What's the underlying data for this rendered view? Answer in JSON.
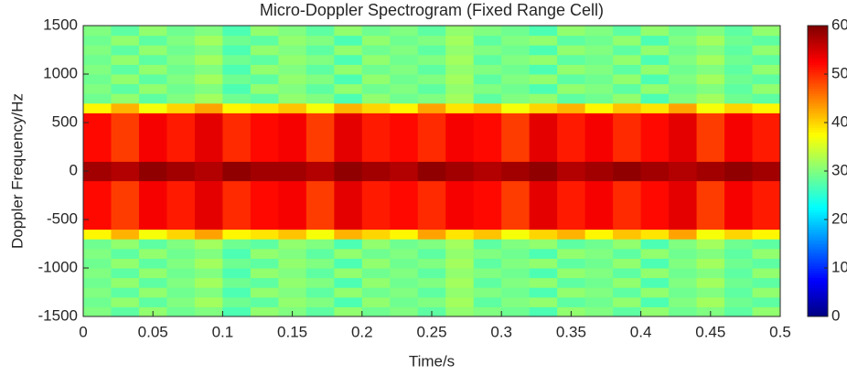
{
  "chart_data": {
    "type": "heatmap",
    "title": "Micro-Doppler Spectrogram (Fixed Range Cell)",
    "xlabel": "Time/s",
    "ylabel": "Doppler Frequency/Hz",
    "colorscale": "jet",
    "xlim": [
      0,
      0.5
    ],
    "ylim": [
      -1500,
      1500
    ],
    "xticks": [
      0,
      0.05,
      0.1,
      0.15,
      0.2,
      0.25,
      0.3,
      0.35,
      0.4,
      0.45,
      0.5
    ],
    "yticks": [
      -1500,
      -1000,
      -500,
      0,
      500,
      1000,
      1500
    ],
    "zlim": [
      0,
      60
    ],
    "cticks": [
      0,
      10,
      20,
      30,
      40,
      50,
      60
    ],
    "x": [
      0.01,
      0.03,
      0.05,
      0.07,
      0.09,
      0.11,
      0.13,
      0.15,
      0.17,
      0.19,
      0.21,
      0.23,
      0.25,
      0.27,
      0.29,
      0.31,
      0.33,
      0.35,
      0.37,
      0.39,
      0.41,
      0.43,
      0.45,
      0.47,
      0.49
    ],
    "y": [
      -1450,
      -1350,
      -1250,
      -1150,
      -1050,
      -950,
      -850,
      -750,
      -650,
      -550,
      -450,
      -350,
      -250,
      -150,
      -50,
      50,
      150,
      250,
      350,
      450,
      550,
      650,
      750,
      850,
      950,
      1050,
      1150,
      1250,
      1350,
      1450
    ],
    "z": [
      [
        30,
        28,
        31,
        29,
        30,
        27,
        31,
        30,
        28,
        31,
        29,
        30,
        28,
        31,
        30,
        29,
        27,
        31,
        30,
        28,
        31,
        29,
        30,
        28,
        31
      ],
      [
        29,
        31,
        28,
        30,
        32,
        29,
        28,
        31,
        30,
        27,
        31,
        29,
        30,
        32,
        28,
        30,
        31,
        28,
        29,
        31,
        27,
        30,
        32,
        29,
        28
      ],
      [
        30,
        28,
        31,
        29,
        30,
        27,
        31,
        30,
        28,
        31,
        29,
        30,
        28,
        31,
        30,
        29,
        27,
        31,
        30,
        28,
        31,
        29,
        30,
        28,
        31
      ],
      [
        29,
        31,
        28,
        30,
        32,
        29,
        28,
        31,
        30,
        27,
        31,
        29,
        30,
        32,
        28,
        30,
        31,
        28,
        29,
        31,
        27,
        30,
        32,
        29,
        28
      ],
      [
        30,
        28,
        31,
        29,
        30,
        27,
        31,
        30,
        28,
        31,
        29,
        30,
        28,
        31,
        30,
        29,
        27,
        31,
        30,
        28,
        31,
        29,
        30,
        28,
        31
      ],
      [
        29,
        31,
        28,
        30,
        32,
        29,
        28,
        31,
        30,
        27,
        31,
        29,
        30,
        32,
        28,
        30,
        31,
        28,
        29,
        31,
        27,
        30,
        32,
        29,
        28
      ],
      [
        30,
        28,
        31,
        29,
        30,
        27,
        31,
        30,
        28,
        31,
        29,
        30,
        28,
        31,
        30,
        29,
        27,
        31,
        30,
        28,
        31,
        29,
        30,
        28,
        31
      ],
      [
        29,
        31,
        28,
        30,
        32,
        29,
        28,
        31,
        30,
        27,
        31,
        29,
        30,
        32,
        28,
        30,
        31,
        28,
        29,
        31,
        27,
        30,
        32,
        29,
        28
      ],
      [
        38,
        42,
        37,
        40,
        43,
        38,
        39,
        41,
        37,
        42,
        40,
        38,
        43,
        39,
        41,
        37,
        40,
        42,
        38,
        41,
        39,
        43,
        37,
        40,
        38
      ],
      [
        52,
        49,
        53,
        51,
        54,
        50,
        52,
        53,
        49,
        54,
        51,
        52,
        50,
        53,
        52,
        49,
        54,
        51,
        53,
        50,
        52,
        54,
        49,
        53,
        51
      ],
      [
        52,
        49,
        53,
        51,
        54,
        50,
        52,
        53,
        49,
        54,
        51,
        52,
        50,
        53,
        52,
        49,
        54,
        51,
        53,
        50,
        52,
        54,
        49,
        53,
        51
      ],
      [
        52,
        49,
        53,
        51,
        54,
        50,
        52,
        53,
        49,
        54,
        51,
        52,
        50,
        53,
        52,
        49,
        54,
        51,
        53,
        50,
        52,
        54,
        49,
        53,
        51
      ],
      [
        52,
        49,
        53,
        51,
        54,
        50,
        52,
        53,
        49,
        54,
        51,
        52,
        50,
        53,
        52,
        49,
        54,
        51,
        53,
        50,
        52,
        54,
        49,
        53,
        51
      ],
      [
        52,
        49,
        53,
        51,
        54,
        50,
        52,
        53,
        49,
        54,
        51,
        52,
        50,
        53,
        52,
        49,
        54,
        51,
        53,
        50,
        52,
        54,
        49,
        53,
        51
      ],
      [
        58,
        57,
        59,
        58,
        57,
        59,
        58,
        58,
        57,
        59,
        58,
        57,
        59,
        58,
        57,
        58,
        59,
        57,
        58,
        59,
        58,
        57,
        58,
        59,
        58
      ],
      [
        58,
        57,
        59,
        58,
        57,
        59,
        58,
        58,
        57,
        59,
        58,
        57,
        59,
        58,
        57,
        58,
        59,
        57,
        58,
        59,
        58,
        57,
        58,
        59,
        58
      ],
      [
        52,
        49,
        53,
        51,
        54,
        50,
        52,
        53,
        49,
        54,
        51,
        52,
        50,
        53,
        52,
        49,
        54,
        51,
        53,
        50,
        52,
        54,
        49,
        53,
        51
      ],
      [
        52,
        49,
        53,
        51,
        54,
        50,
        52,
        53,
        49,
        54,
        51,
        52,
        50,
        53,
        52,
        49,
        54,
        51,
        53,
        50,
        52,
        54,
        49,
        53,
        51
      ],
      [
        52,
        49,
        53,
        51,
        54,
        50,
        52,
        53,
        49,
        54,
        51,
        52,
        50,
        53,
        52,
        49,
        54,
        51,
        53,
        50,
        52,
        54,
        49,
        53,
        51
      ],
      [
        52,
        49,
        53,
        51,
        54,
        50,
        52,
        53,
        49,
        54,
        51,
        52,
        50,
        53,
        52,
        49,
        54,
        51,
        53,
        50,
        52,
        54,
        49,
        53,
        51
      ],
      [
        52,
        49,
        53,
        51,
        54,
        50,
        52,
        53,
        49,
        54,
        51,
        52,
        50,
        53,
        52,
        49,
        54,
        51,
        53,
        50,
        52,
        54,
        49,
        53,
        51
      ],
      [
        38,
        42,
        37,
        40,
        43,
        38,
        39,
        41,
        37,
        42,
        40,
        38,
        43,
        39,
        41,
        37,
        40,
        42,
        38,
        41,
        39,
        43,
        37,
        40,
        38
      ],
      [
        29,
        31,
        28,
        30,
        32,
        29,
        28,
        31,
        30,
        27,
        31,
        29,
        30,
        32,
        28,
        30,
        31,
        28,
        29,
        31,
        27,
        30,
        32,
        29,
        28
      ],
      [
        30,
        28,
        31,
        29,
        30,
        27,
        31,
        30,
        28,
        31,
        29,
        30,
        28,
        31,
        30,
        29,
        27,
        31,
        30,
        28,
        31,
        29,
        30,
        28,
        31
      ],
      [
        29,
        31,
        28,
        30,
        32,
        29,
        28,
        31,
        30,
        27,
        31,
        29,
        30,
        32,
        28,
        30,
        31,
        28,
        29,
        31,
        27,
        30,
        32,
        29,
        28
      ],
      [
        30,
        28,
        31,
        29,
        30,
        27,
        31,
        30,
        28,
        31,
        29,
        30,
        28,
        31,
        30,
        29,
        27,
        31,
        30,
        28,
        31,
        29,
        30,
        28,
        31
      ],
      [
        29,
        31,
        28,
        30,
        32,
        29,
        28,
        31,
        30,
        27,
        31,
        29,
        30,
        32,
        28,
        30,
        31,
        28,
        29,
        31,
        27,
        30,
        32,
        29,
        28
      ],
      [
        30,
        28,
        31,
        29,
        30,
        27,
        31,
        30,
        28,
        31,
        29,
        30,
        28,
        31,
        30,
        29,
        27,
        31,
        30,
        28,
        31,
        29,
        30,
        28,
        31
      ],
      [
        29,
        31,
        28,
        30,
        32,
        29,
        28,
        31,
        30,
        27,
        31,
        29,
        30,
        32,
        28,
        30,
        31,
        28,
        29,
        31,
        27,
        30,
        32,
        29,
        28
      ],
      [
        30,
        28,
        31,
        29,
        30,
        27,
        31,
        30,
        28,
        31,
        29,
        30,
        28,
        31,
        30,
        29,
        27,
        31,
        30,
        28,
        31,
        29,
        30,
        28,
        31
      ]
    ]
  }
}
